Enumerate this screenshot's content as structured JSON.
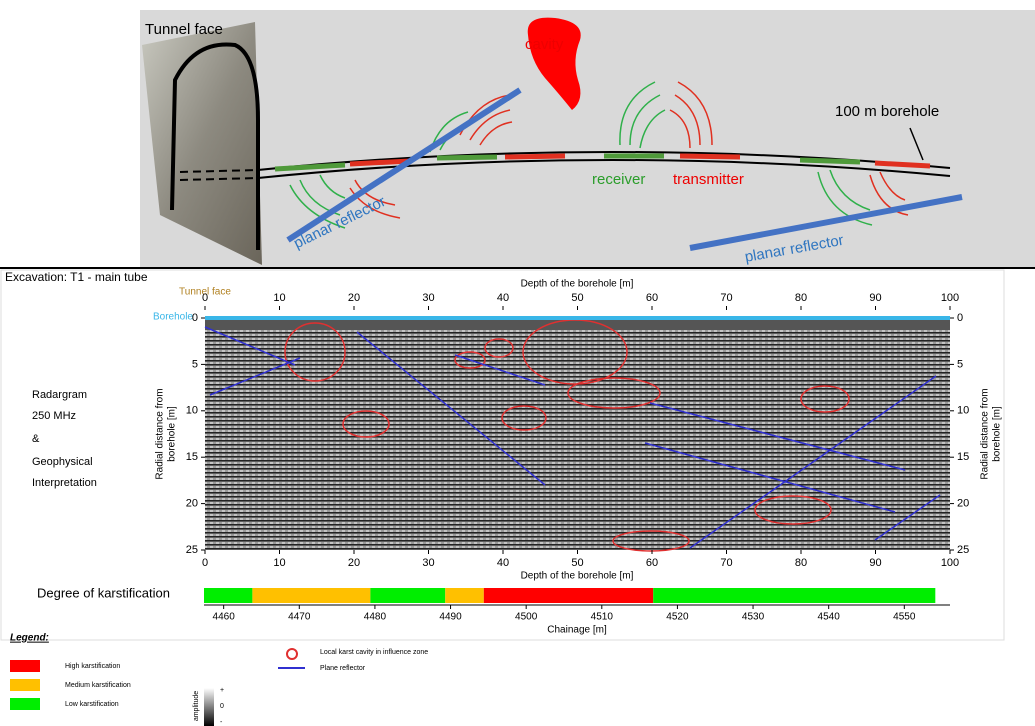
{
  "scheme": {
    "tunnel_face": "Tunnel face",
    "cavity": "cavity",
    "borehole": "100 m borehole",
    "receiver": "receiver",
    "transmitter": "transmitter",
    "reflector_1": "planar reflector",
    "reflector_2": "planar reflector"
  },
  "excavation": "Excavation: T1 - main tube",
  "side_text": [
    "Radargram",
    "250 MHz",
    "&",
    "Geophysical",
    "Interpretation"
  ],
  "radargram": {
    "top_axis_title": "Depth of the borehole [m]",
    "bottom_axis_title": "Depth of the borehole [m]",
    "tunnel_face_label": "Tunnel face",
    "borehole_label": "Borehole",
    "y_label": [
      "Radial distance from",
      "borehole [m]"
    ],
    "xlim": [
      0,
      100
    ],
    "xticks": [
      0,
      10,
      20,
      30,
      40,
      50,
      60,
      70,
      80,
      90,
      100
    ],
    "ylim": [
      0,
      25
    ],
    "yticks": [
      0,
      5,
      10,
      15,
      20,
      25
    ]
  },
  "karstification": {
    "label": "Degree of karstification",
    "axis_title": "Chainage [m]",
    "xlim": [
      4457.4,
      4557.1
    ],
    "xticks": [
      4460,
      4470,
      4480,
      4490,
      4500,
      4510,
      4520,
      4530,
      4540,
      4550
    ],
    "segments": [
      {
        "start": 4457.4,
        "end": 4463.8,
        "color": "#00ee00"
      },
      {
        "start": 4463.8,
        "end": 4479.4,
        "color": "#ffc000"
      },
      {
        "start": 4479.4,
        "end": 4489.3,
        "color": "#00ee00"
      },
      {
        "start": 4489.3,
        "end": 4494.4,
        "color": "#ffc000"
      },
      {
        "start": 4494.4,
        "end": 4516.8,
        "color": "#ff0000"
      },
      {
        "start": 4516.8,
        "end": 4554.1,
        "color": "#00ee00"
      }
    ]
  },
  "legend": {
    "title": "Legend:",
    "items": [
      {
        "label": "High karstification",
        "color": "#ff0000"
      },
      {
        "label": "Medium karstification",
        "color": "#ffc000"
      },
      {
        "label": "Low karstification",
        "color": "#00ee00"
      }
    ],
    "cavity": "Local karst cavity in influence zone",
    "reflector": "Plane reflector",
    "amplitude": "amplitude",
    "plus": "+",
    "zero": "0",
    "minus": "-"
  }
}
